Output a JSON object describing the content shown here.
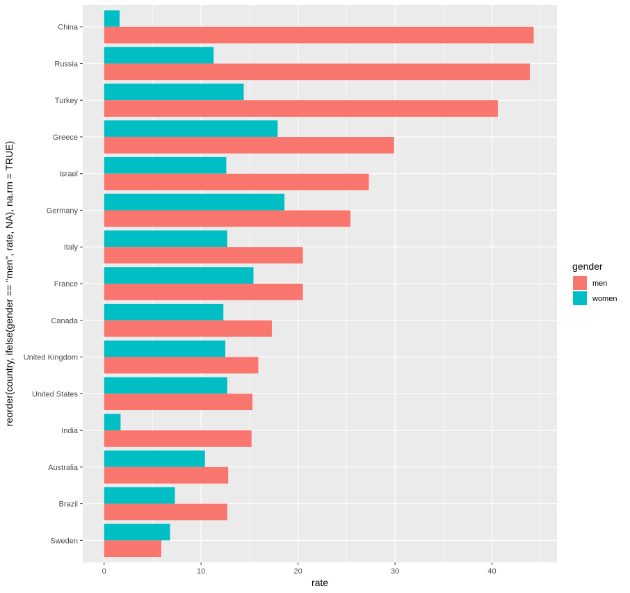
{
  "chart_data": {
    "type": "bar",
    "orientation": "horizontal",
    "title": "",
    "xlabel": "rate",
    "ylabel": "reorder(country, ifelse(gender == \"men\", rate, NA), na.rm = TRUE)",
    "xlim": [
      -2.2,
      46.7
    ],
    "x_ticks": [
      0,
      10,
      20,
      30,
      40
    ],
    "grid": true,
    "background": "#ebebeb",
    "legend": {
      "title": "gender",
      "placement": "right"
    },
    "categories": [
      "China",
      "Russia",
      "Turkey",
      "Greece",
      "Israel",
      "Germany",
      "Italy",
      "France",
      "Canada",
      "United Kingdom",
      "United States",
      "India",
      "Australia",
      "Brazil",
      "Sweden"
    ],
    "series": [
      {
        "name": "men",
        "color": "#f8766d",
        "values": [
          44.3,
          43.9,
          40.6,
          29.9,
          27.3,
          25.4,
          20.5,
          20.5,
          17.3,
          15.9,
          15.3,
          15.2,
          12.8,
          12.7,
          5.9
        ]
      },
      {
        "name": "women",
        "color": "#00bfc4",
        "values": [
          1.6,
          11.3,
          14.4,
          17.9,
          12.6,
          18.6,
          12.7,
          15.4,
          12.3,
          12.5,
          12.7,
          1.7,
          10.4,
          7.3,
          6.8
        ]
      }
    ]
  }
}
